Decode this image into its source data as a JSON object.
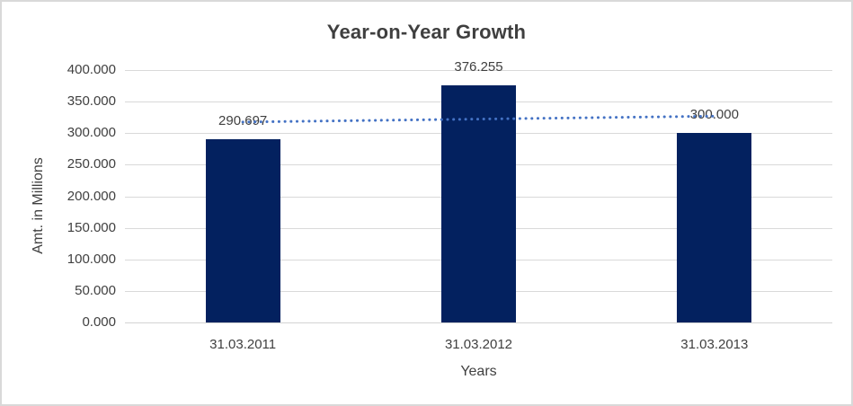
{
  "chart_data": {
    "type": "bar",
    "title": "Year-on-Year Growth",
    "xlabel": "Years",
    "ylabel": "Amt. in Millions",
    "categories": [
      "31.03.2011",
      "31.03.2012",
      "31.03.2013"
    ],
    "values": [
      290.697,
      376.255,
      300.0
    ],
    "data_labels": [
      "290.697",
      "376.255",
      "300.000"
    ],
    "ylim": [
      0,
      400
    ],
    "ytick_step": 50,
    "ytick_labels": [
      "0.000",
      "50.000",
      "100.000",
      "150.000",
      "200.000",
      "250.000",
      "300.000",
      "350.000",
      "400.000"
    ],
    "grid": true,
    "legend": false,
    "bar_color": "#03215f",
    "trendline": {
      "type": "linear",
      "style": "round-dot",
      "color": "#4472c4"
    },
    "text_color": "#404040",
    "gridline_color": "#d9d9d9",
    "border_color": "#d9d9d9",
    "background_color": "#ffffff"
  }
}
